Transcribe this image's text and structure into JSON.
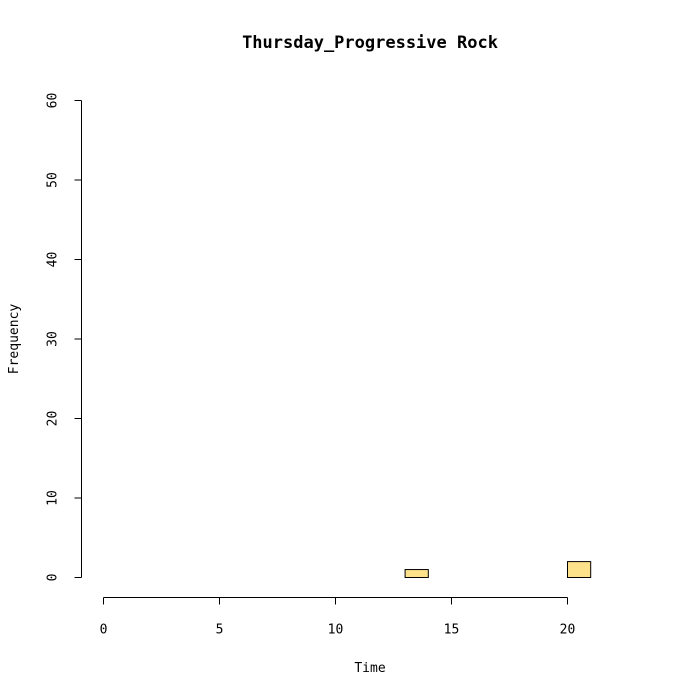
{
  "chart_data": {
    "type": "bar",
    "title": "Thursday_Progressive Rock",
    "xlabel": "Time",
    "ylabel": "Frequency",
    "xlim": [
      0,
      24
    ],
    "ylim": [
      0,
      60
    ],
    "x_ticks": [
      0,
      5,
      10,
      15,
      20
    ],
    "y_ticks": [
      0,
      10,
      20,
      30,
      40,
      50,
      60
    ],
    "bin_width": 1,
    "bins": [
      {
        "start": 0,
        "value": 0
      },
      {
        "start": 1,
        "value": 0
      },
      {
        "start": 2,
        "value": 0
      },
      {
        "start": 3,
        "value": 0
      },
      {
        "start": 4,
        "value": 0
      },
      {
        "start": 5,
        "value": 0
      },
      {
        "start": 6,
        "value": 0
      },
      {
        "start": 7,
        "value": 0
      },
      {
        "start": 8,
        "value": 0
      },
      {
        "start": 9,
        "value": 0
      },
      {
        "start": 10,
        "value": 0
      },
      {
        "start": 11,
        "value": 0
      },
      {
        "start": 12,
        "value": 0
      },
      {
        "start": 13,
        "value": 1
      },
      {
        "start": 14,
        "value": 0
      },
      {
        "start": 15,
        "value": 0
      },
      {
        "start": 16,
        "value": 0
      },
      {
        "start": 17,
        "value": 0
      },
      {
        "start": 18,
        "value": 0
      },
      {
        "start": 19,
        "value": 0
      },
      {
        "start": 20,
        "value": 2
      },
      {
        "start": 21,
        "value": 0
      },
      {
        "start": 22,
        "value": 0
      },
      {
        "start": 23,
        "value": 0
      }
    ],
    "bar_color": "#fde18b",
    "grid": false,
    "legend": "none"
  }
}
